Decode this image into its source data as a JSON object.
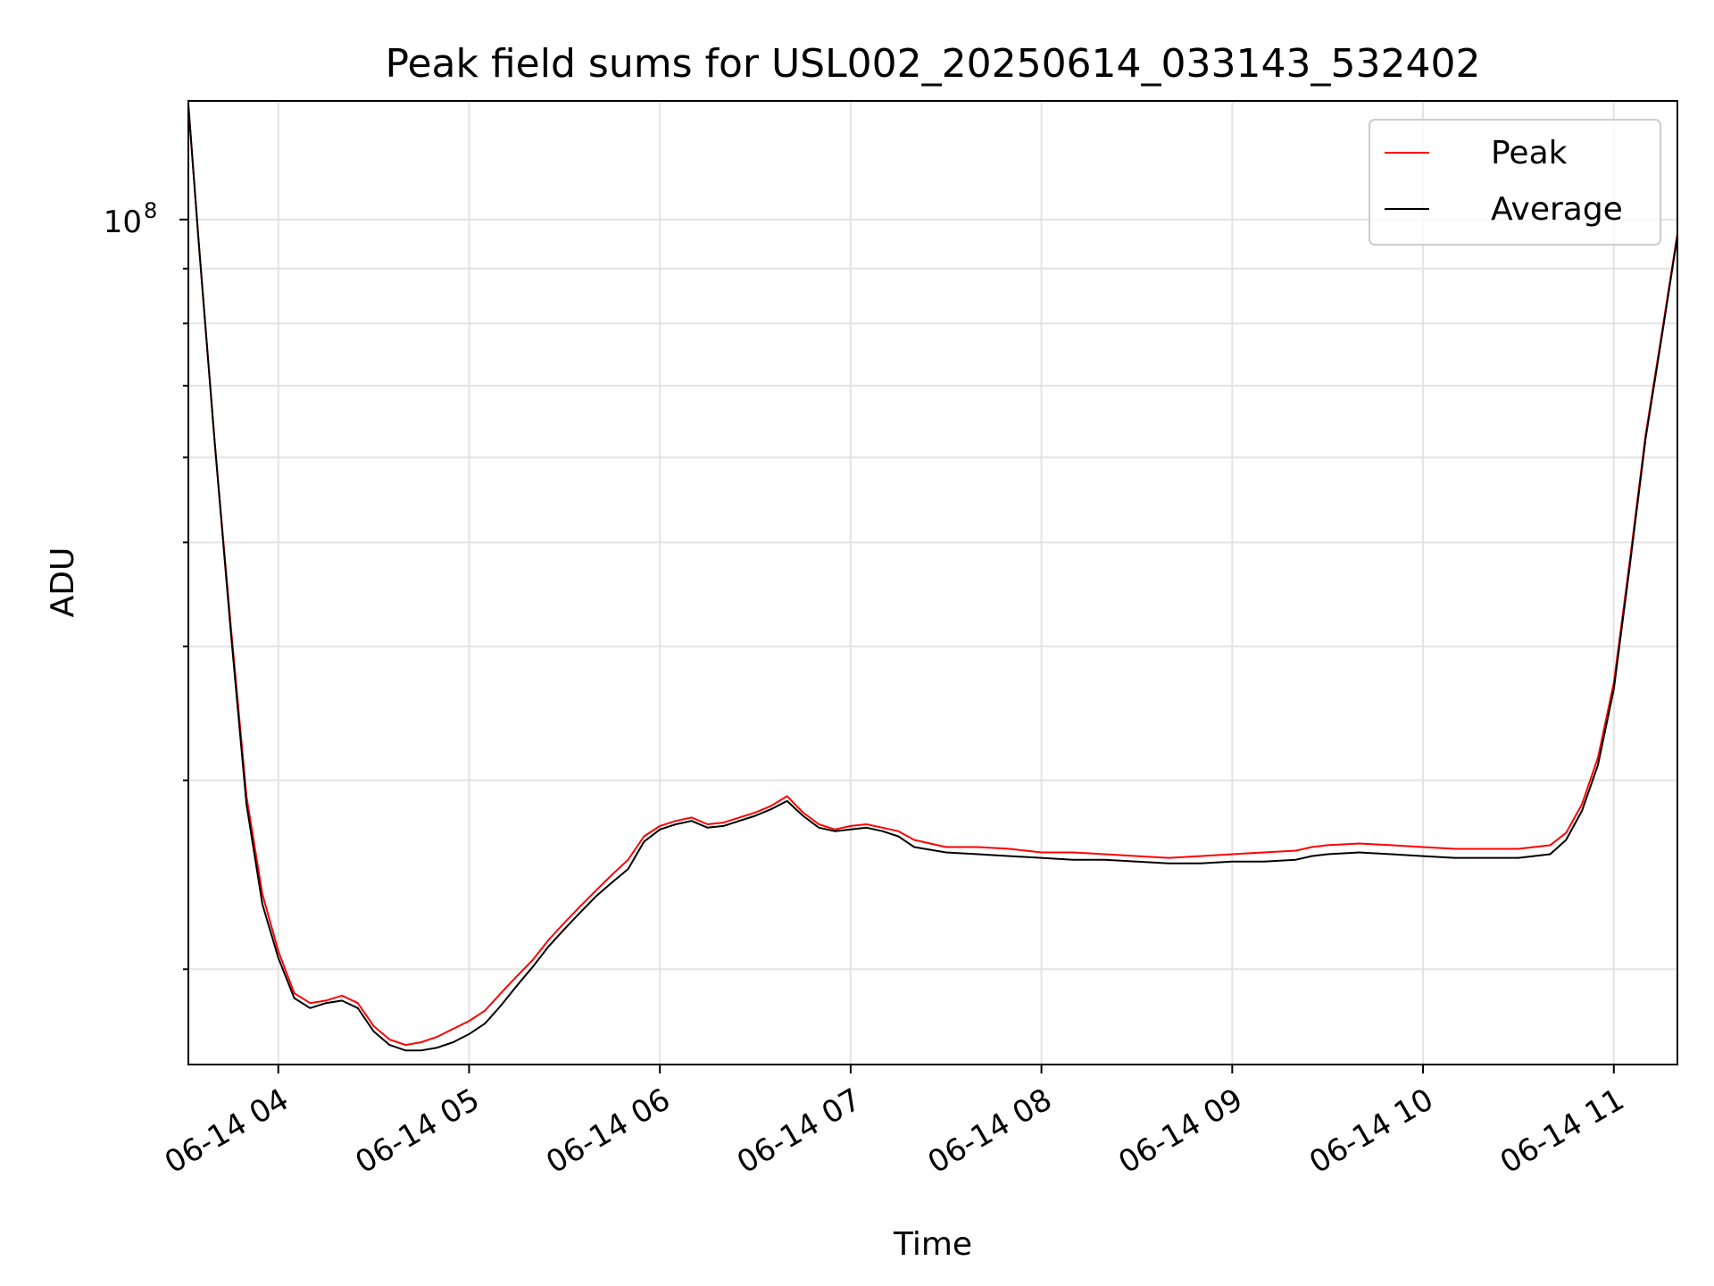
{
  "chart_data": {
    "type": "line",
    "title": "Peak field sums for USL002_20250614_033143_532402",
    "xlabel": "Time",
    "ylabel": "ADU",
    "yscale": "log",
    "grid": true,
    "legend_position": "top-right",
    "xlim": [
      "2025-06-14T03:31:43",
      "2025-06-14T11:20:00"
    ],
    "ylim": [
      16300000,
      129000000
    ],
    "x_ticks": [
      {
        "value": "2025-06-14T04:00:00",
        "label": "06-14 04"
      },
      {
        "value": "2025-06-14T05:00:00",
        "label": "06-14 05"
      },
      {
        "value": "2025-06-14T06:00:00",
        "label": "06-14 06"
      },
      {
        "value": "2025-06-14T07:00:00",
        "label": "06-14 07"
      },
      {
        "value": "2025-06-14T08:00:00",
        "label": "06-14 08"
      },
      {
        "value": "2025-06-14T09:00:00",
        "label": "06-14 09"
      },
      {
        "value": "2025-06-14T10:00:00",
        "label": "06-14 10"
      },
      {
        "value": "2025-06-14T11:00:00",
        "label": "06-14 11"
      }
    ],
    "y_major_ticks": [
      {
        "value": 100000000,
        "label": "10",
        "exponent": "8"
      }
    ],
    "y_minor_ticks": [
      20000000,
      30000000,
      40000000,
      50000000,
      60000000,
      70000000,
      80000000,
      90000000
    ],
    "series": [
      {
        "name": "Peak",
        "color": "#ff0000",
        "points": [
          [
            "2025-06-14T03:31:43",
            128000000
          ],
          [
            "2025-06-14T03:35:00",
            95000000
          ],
          [
            "2025-06-14T03:40:00",
            62000000
          ],
          [
            "2025-06-14T03:45:00",
            42000000
          ],
          [
            "2025-06-14T03:50:00",
            29000000
          ],
          [
            "2025-06-14T03:55:00",
            23500000
          ],
          [
            "2025-06-14T04:00:00",
            20800000
          ],
          [
            "2025-06-14T04:05:00",
            19000000
          ],
          [
            "2025-06-14T04:10:00",
            18600000
          ],
          [
            "2025-06-14T04:15:00",
            18700000
          ],
          [
            "2025-06-14T04:20:00",
            18900000
          ],
          [
            "2025-06-14T04:25:00",
            18600000
          ],
          [
            "2025-06-14T04:30:00",
            17700000
          ],
          [
            "2025-06-14T04:35:00",
            17200000
          ],
          [
            "2025-06-14T04:40:00",
            17000000
          ],
          [
            "2025-06-14T04:45:00",
            17100000
          ],
          [
            "2025-06-14T04:50:00",
            17300000
          ],
          [
            "2025-06-14T04:55:00",
            17600000
          ],
          [
            "2025-06-14T05:00:00",
            17900000
          ],
          [
            "2025-06-14T05:05:00",
            18300000
          ],
          [
            "2025-06-14T05:10:00",
            19000000
          ],
          [
            "2025-06-14T05:15:00",
            19700000
          ],
          [
            "2025-06-14T05:20:00",
            20400000
          ],
          [
            "2025-06-14T05:25:00",
            21300000
          ],
          [
            "2025-06-14T05:30:00",
            22100000
          ],
          [
            "2025-06-14T05:35:00",
            22900000
          ],
          [
            "2025-06-14T05:40:00",
            23700000
          ],
          [
            "2025-06-14T05:45:00",
            24500000
          ],
          [
            "2025-06-14T05:50:00",
            25300000
          ],
          [
            "2025-06-14T05:55:00",
            26600000
          ],
          [
            "2025-06-14T06:00:00",
            27200000
          ],
          [
            "2025-06-14T06:05:00",
            27500000
          ],
          [
            "2025-06-14T06:10:00",
            27700000
          ],
          [
            "2025-06-14T06:15:00",
            27300000
          ],
          [
            "2025-06-14T06:20:00",
            27400000
          ],
          [
            "2025-06-14T06:25:00",
            27700000
          ],
          [
            "2025-06-14T06:30:00",
            28000000
          ],
          [
            "2025-06-14T06:35:00",
            28400000
          ],
          [
            "2025-06-14T06:40:00",
            29000000
          ],
          [
            "2025-06-14T06:45:00",
            28000000
          ],
          [
            "2025-06-14T06:50:00",
            27300000
          ],
          [
            "2025-06-14T06:55:00",
            27000000
          ],
          [
            "2025-06-14T07:00:00",
            27200000
          ],
          [
            "2025-06-14T07:05:00",
            27300000
          ],
          [
            "2025-06-14T07:10:00",
            27100000
          ],
          [
            "2025-06-14T07:15:00",
            26900000
          ],
          [
            "2025-06-14T07:20:00",
            26400000
          ],
          [
            "2025-06-14T07:30:00",
            26000000
          ],
          [
            "2025-06-14T07:40:00",
            26000000
          ],
          [
            "2025-06-14T07:50:00",
            25900000
          ],
          [
            "2025-06-14T08:00:00",
            25700000
          ],
          [
            "2025-06-14T08:10:00",
            25700000
          ],
          [
            "2025-06-14T08:20:00",
            25600000
          ],
          [
            "2025-06-14T08:30:00",
            25500000
          ],
          [
            "2025-06-14T08:40:00",
            25400000
          ],
          [
            "2025-06-14T08:50:00",
            25500000
          ],
          [
            "2025-06-14T09:00:00",
            25600000
          ],
          [
            "2025-06-14T09:10:00",
            25700000
          ],
          [
            "2025-06-14T09:20:00",
            25800000
          ],
          [
            "2025-06-14T09:25:00",
            26000000
          ],
          [
            "2025-06-14T09:30:00",
            26100000
          ],
          [
            "2025-06-14T09:40:00",
            26200000
          ],
          [
            "2025-06-14T09:50:00",
            26100000
          ],
          [
            "2025-06-14T10:00:00",
            26000000
          ],
          [
            "2025-06-14T10:10:00",
            25900000
          ],
          [
            "2025-06-14T10:20:00",
            25900000
          ],
          [
            "2025-06-14T10:30:00",
            25900000
          ],
          [
            "2025-06-14T10:40:00",
            26100000
          ],
          [
            "2025-06-14T10:45:00",
            26800000
          ],
          [
            "2025-06-14T10:50:00",
            28500000
          ],
          [
            "2025-06-14T10:55:00",
            31500000
          ],
          [
            "2025-06-14T11:00:00",
            37000000
          ],
          [
            "2025-06-14T11:05:00",
            48000000
          ],
          [
            "2025-06-14T11:10:00",
            63000000
          ],
          [
            "2025-06-14T11:15:00",
            78000000
          ],
          [
            "2025-06-14T11:20:00",
            97000000
          ]
        ]
      },
      {
        "name": "Average",
        "color": "#000000",
        "points": [
          [
            "2025-06-14T03:31:43",
            128000000
          ],
          [
            "2025-06-14T03:35:00",
            95000000
          ],
          [
            "2025-06-14T03:40:00",
            62000000
          ],
          [
            "2025-06-14T03:45:00",
            41500000
          ],
          [
            "2025-06-14T03:50:00",
            28500000
          ],
          [
            "2025-06-14T03:55:00",
            23000000
          ],
          [
            "2025-06-14T04:00:00",
            20500000
          ],
          [
            "2025-06-14T04:05:00",
            18800000
          ],
          [
            "2025-06-14T04:10:00",
            18400000
          ],
          [
            "2025-06-14T04:15:00",
            18600000
          ],
          [
            "2025-06-14T04:20:00",
            18700000
          ],
          [
            "2025-06-14T04:25:00",
            18400000
          ],
          [
            "2025-06-14T04:30:00",
            17500000
          ],
          [
            "2025-06-14T04:35:00",
            17000000
          ],
          [
            "2025-06-14T04:40:00",
            16800000
          ],
          [
            "2025-06-14T04:45:00",
            16800000
          ],
          [
            "2025-06-14T04:50:00",
            16900000
          ],
          [
            "2025-06-14T04:55:00",
            17100000
          ],
          [
            "2025-06-14T05:00:00",
            17400000
          ],
          [
            "2025-06-14T05:05:00",
            17800000
          ],
          [
            "2025-06-14T05:10:00",
            18500000
          ],
          [
            "2025-06-14T05:15:00",
            19300000
          ],
          [
            "2025-06-14T05:20:00",
            20100000
          ],
          [
            "2025-06-14T05:25:00",
            21000000
          ],
          [
            "2025-06-14T05:30:00",
            21800000
          ],
          [
            "2025-06-14T05:35:00",
            22600000
          ],
          [
            "2025-06-14T05:40:00",
            23400000
          ],
          [
            "2025-06-14T05:45:00",
            24100000
          ],
          [
            "2025-06-14T05:50:00",
            24800000
          ],
          [
            "2025-06-14T05:55:00",
            26300000
          ],
          [
            "2025-06-14T06:00:00",
            27000000
          ],
          [
            "2025-06-14T06:05:00",
            27300000
          ],
          [
            "2025-06-14T06:10:00",
            27500000
          ],
          [
            "2025-06-14T06:15:00",
            27100000
          ],
          [
            "2025-06-14T06:20:00",
            27200000
          ],
          [
            "2025-06-14T06:25:00",
            27500000
          ],
          [
            "2025-06-14T06:30:00",
            27800000
          ],
          [
            "2025-06-14T06:35:00",
            28200000
          ],
          [
            "2025-06-14T06:40:00",
            28700000
          ],
          [
            "2025-06-14T06:45:00",
            27800000
          ],
          [
            "2025-06-14T06:50:00",
            27100000
          ],
          [
            "2025-06-14T06:55:00",
            26900000
          ],
          [
            "2025-06-14T07:00:00",
            27000000
          ],
          [
            "2025-06-14T07:05:00",
            27100000
          ],
          [
            "2025-06-14T07:10:00",
            26900000
          ],
          [
            "2025-06-14T07:15:00",
            26600000
          ],
          [
            "2025-06-14T07:20:00",
            26000000
          ],
          [
            "2025-06-14T07:30:00",
            25700000
          ],
          [
            "2025-06-14T07:40:00",
            25600000
          ],
          [
            "2025-06-14T07:50:00",
            25500000
          ],
          [
            "2025-06-14T08:00:00",
            25400000
          ],
          [
            "2025-06-14T08:10:00",
            25300000
          ],
          [
            "2025-06-14T08:20:00",
            25300000
          ],
          [
            "2025-06-14T08:30:00",
            25200000
          ],
          [
            "2025-06-14T08:40:00",
            25100000
          ],
          [
            "2025-06-14T08:50:00",
            25100000
          ],
          [
            "2025-06-14T09:00:00",
            25200000
          ],
          [
            "2025-06-14T09:10:00",
            25200000
          ],
          [
            "2025-06-14T09:20:00",
            25300000
          ],
          [
            "2025-06-14T09:25:00",
            25500000
          ],
          [
            "2025-06-14T09:30:00",
            25600000
          ],
          [
            "2025-06-14T09:40:00",
            25700000
          ],
          [
            "2025-06-14T09:50:00",
            25600000
          ],
          [
            "2025-06-14T10:00:00",
            25500000
          ],
          [
            "2025-06-14T10:10:00",
            25400000
          ],
          [
            "2025-06-14T10:20:00",
            25400000
          ],
          [
            "2025-06-14T10:30:00",
            25400000
          ],
          [
            "2025-06-14T10:40:00",
            25600000
          ],
          [
            "2025-06-14T10:45:00",
            26400000
          ],
          [
            "2025-06-14T10:50:00",
            28100000
          ],
          [
            "2025-06-14T10:55:00",
            31000000
          ],
          [
            "2025-06-14T11:00:00",
            36500000
          ],
          [
            "2025-06-14T11:05:00",
            47500000
          ],
          [
            "2025-06-14T11:10:00",
            62500000
          ],
          [
            "2025-06-14T11:15:00",
            77500000
          ],
          [
            "2025-06-14T11:20:00",
            96500000
          ]
        ]
      }
    ]
  }
}
